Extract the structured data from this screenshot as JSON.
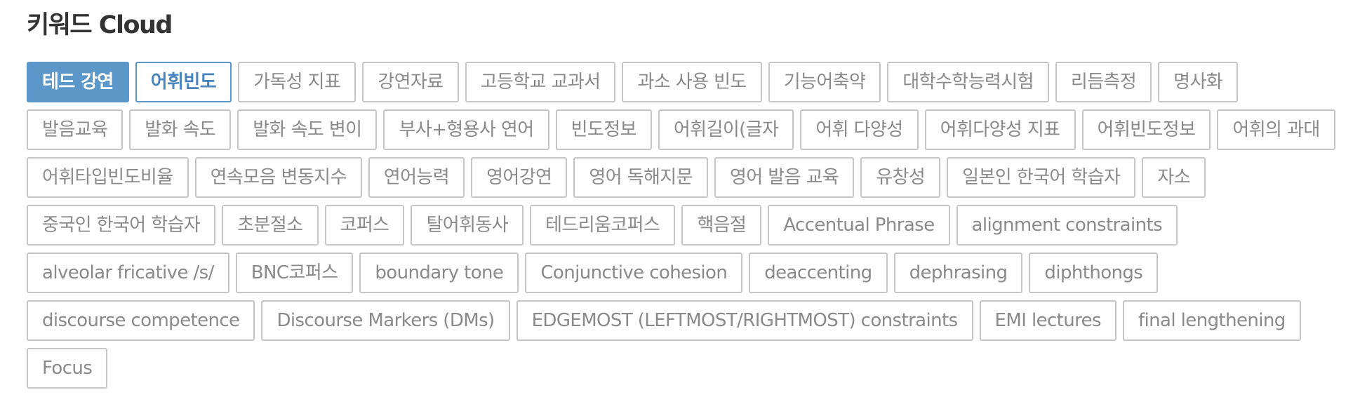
{
  "title": "키워드 Cloud",
  "tags": [
    {
      "label": "테드 강연",
      "state": "active"
    },
    {
      "label": "어휘빈도",
      "state": "selected"
    },
    {
      "label": "가독성 지표",
      "state": ""
    },
    {
      "label": "강연자료",
      "state": ""
    },
    {
      "label": "고등학교 교과서",
      "state": ""
    },
    {
      "label": "과소 사용 빈도",
      "state": ""
    },
    {
      "label": "기능어축약",
      "state": ""
    },
    {
      "label": "대학수학능력시험",
      "state": ""
    },
    {
      "label": "리듬측정",
      "state": ""
    },
    {
      "label": "명사화",
      "state": ""
    },
    {
      "label": "발음교육",
      "state": ""
    },
    {
      "label": "발화 속도",
      "state": ""
    },
    {
      "label": "발화 속도 변이",
      "state": ""
    },
    {
      "label": "부사+형용사 연어",
      "state": ""
    },
    {
      "label": "빈도정보",
      "state": ""
    },
    {
      "label": "어휘길이(글자",
      "state": ""
    },
    {
      "label": "어휘 다양성",
      "state": ""
    },
    {
      "label": "어휘다양성 지표",
      "state": ""
    },
    {
      "label": "어휘빈도정보",
      "state": ""
    },
    {
      "label": "어휘의 과대",
      "state": ""
    },
    {
      "label": "어휘타입빈도비율",
      "state": ""
    },
    {
      "label": "연속모음 변동지수",
      "state": ""
    },
    {
      "label": "연어능력",
      "state": ""
    },
    {
      "label": "영어강연",
      "state": ""
    },
    {
      "label": "영어 독해지문",
      "state": ""
    },
    {
      "label": "영어 발음 교육",
      "state": ""
    },
    {
      "label": "유창성",
      "state": ""
    },
    {
      "label": "일본인 한국어 학습자",
      "state": ""
    },
    {
      "label": "자소",
      "state": ""
    },
    {
      "label": "중국인 한국어 학습자",
      "state": ""
    },
    {
      "label": "초분절소",
      "state": ""
    },
    {
      "label": "코퍼스",
      "state": ""
    },
    {
      "label": "탈어휘동사",
      "state": ""
    },
    {
      "label": "테드리움코퍼스",
      "state": ""
    },
    {
      "label": "핵음절",
      "state": ""
    },
    {
      "label": "Accentual Phrase",
      "state": ""
    },
    {
      "label": "alignment constraints",
      "state": ""
    },
    {
      "label": "alveolar fricative /s/",
      "state": ""
    },
    {
      "label": "BNC코퍼스",
      "state": ""
    },
    {
      "label": "boundary tone",
      "state": ""
    },
    {
      "label": "Conjunctive cohesion",
      "state": ""
    },
    {
      "label": "deaccenting",
      "state": ""
    },
    {
      "label": "dephrasing",
      "state": ""
    },
    {
      "label": "diphthongs",
      "state": ""
    },
    {
      "label": "discourse competence",
      "state": ""
    },
    {
      "label": "Discourse Markers (DMs)",
      "state": ""
    },
    {
      "label": "EDGEMOST (LEFTMOST/RIGHTMOST) constraints",
      "state": ""
    },
    {
      "label": "EMI lectures",
      "state": ""
    },
    {
      "label": "final lengthening",
      "state": ""
    },
    {
      "label": "Focus",
      "state": ""
    }
  ]
}
